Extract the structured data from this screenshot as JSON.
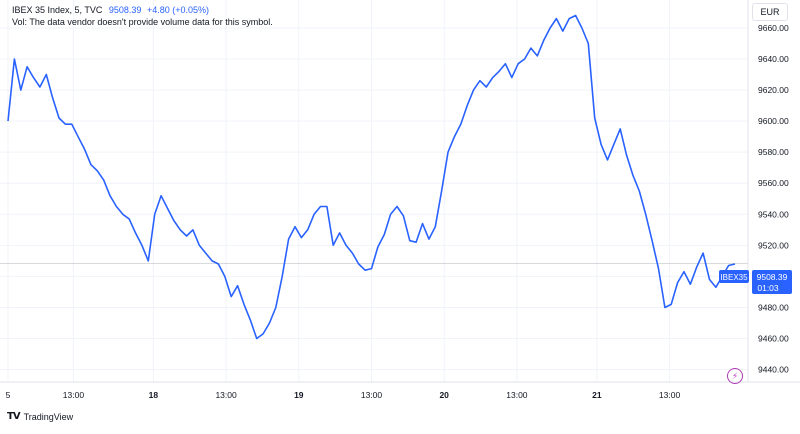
{
  "legend": {
    "symbol": "IBEX 35 Index, 5, TVC",
    "price": "9508.39",
    "change": "+4.80 (+0.05%)",
    "volume_note": "Vol: The data vendor doesn't provide volume data for this symbol."
  },
  "currency_button": "EUR",
  "price_tag": {
    "ticker": "IBEX35",
    "value": "9508.39",
    "countdown": "01:03"
  },
  "branding": {
    "name": "TradingView"
  },
  "colors": {
    "line": "#2962ff",
    "grid": "#f0f3fa",
    "text": "#131722",
    "price_line": "#b2b5be"
  },
  "chart_data": {
    "type": "line",
    "series": [
      {
        "name": "IBEX35",
        "values": [
          9600,
          9640,
          9620,
          9635,
          9628,
          9622,
          9630,
          9615,
          9602,
          9598,
          9598,
          9590,
          9582,
          9572,
          9568,
          9562,
          9552,
          9545,
          9540,
          9537,
          9528,
          9520,
          9510,
          9540,
          9552,
          9544,
          9536,
          9530,
          9526,
          9530,
          9520,
          9515,
          9510,
          9508,
          9500,
          9487,
          9494,
          9482,
          9472,
          9460,
          9463,
          9470,
          9480,
          9500,
          9524,
          9532,
          9525,
          9530,
          9540,
          9545,
          9545,
          9520,
          9528,
          9520,
          9515,
          9508,
          9504,
          9505,
          9519,
          9527,
          9540,
          9545,
          9539,
          9523,
          9522,
          9534,
          9524,
          9532,
          9555,
          9580,
          9590,
          9598,
          9610,
          9620,
          9626,
          9622,
          9628,
          9632,
          9637,
          9628,
          9637,
          9640,
          9647,
          9642,
          9652,
          9660,
          9666,
          9658,
          9666,
          9668,
          9660,
          9650,
          9602,
          9585,
          9575,
          9585,
          9595,
          9578,
          9565,
          9555,
          9540,
          9523,
          9505,
          9480,
          9482,
          9496,
          9503,
          9495,
          9506,
          9515,
          9498,
          9493,
          9500,
          9507,
          9508
        ]
      }
    ],
    "x_ticks": [
      {
        "label": "5",
        "pos": 0
      },
      {
        "label": "13:00",
        "pos": 0.09
      },
      {
        "label": "18",
        "pos": 0.2
      },
      {
        "label": "13:00",
        "pos": 0.3
      },
      {
        "label": "19",
        "pos": 0.4
      },
      {
        "label": "13:00",
        "pos": 0.5
      },
      {
        "label": "20",
        "pos": 0.6
      },
      {
        "label": "13:00",
        "pos": 0.7
      },
      {
        "label": "21",
        "pos": 0.81
      },
      {
        "label": "13:00",
        "pos": 0.91
      }
    ],
    "bold_ticks": [
      "18",
      "19",
      "20",
      "21"
    ],
    "y_ticks": [
      9440,
      9460,
      9480,
      9500,
      9520,
      9540,
      9560,
      9580,
      9600,
      9620,
      9640,
      9660
    ],
    "ylim": [
      9432,
      9678
    ],
    "current_price": 9508.39,
    "grid": true
  }
}
